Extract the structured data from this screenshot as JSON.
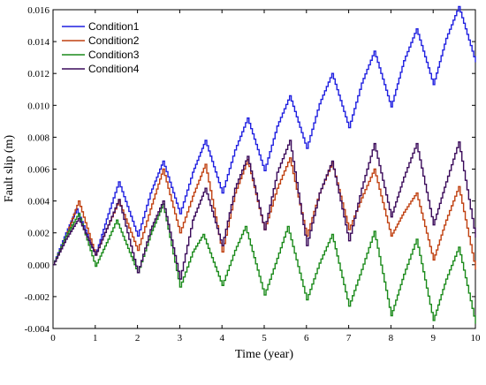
{
  "chart_data": {
    "type": "line",
    "title": "",
    "xlabel": "Time (year)",
    "ylabel": "Fault slip (m)",
    "xlim": [
      0,
      10
    ],
    "ylim": [
      -0.004,
      0.016
    ],
    "xticks": [
      0,
      1,
      2,
      3,
      4,
      5,
      6,
      7,
      8,
      9,
      10
    ],
    "xtick_labels": [
      "0",
      "1",
      "2",
      "3",
      "4",
      "5",
      "6",
      "7",
      "8",
      "9",
      "10"
    ],
    "yticks": [
      -0.004,
      -0.002,
      0,
      0.002,
      0.004,
      0.006,
      0.008,
      0.01,
      0.012,
      0.014,
      0.016
    ],
    "ytick_labels": [
      "-0.004",
      "-0.002",
      "0.000",
      "0.002",
      "0.004",
      "0.006",
      "0.008",
      "0.010",
      "0.012",
      "0.014",
      "0.016"
    ],
    "grid": false,
    "legend_position": "top-left",
    "series": [
      {
        "name": "Condition1",
        "color": "#1f1fe0",
        "x": [
          0,
          0.3,
          0.55,
          1.0,
          1.3,
          1.55,
          2.0,
          2.3,
          2.6,
          3.0,
          3.3,
          3.6,
          4.0,
          4.3,
          4.6,
          5.0,
          5.3,
          5.6,
          6.0,
          6.3,
          6.6,
          7.0,
          7.3,
          7.6,
          8.0,
          8.3,
          8.6,
          9.0,
          9.3,
          9.6,
          10.0
        ],
        "y": [
          0,
          0.002,
          0.0035,
          0.0006,
          0.0032,
          0.0052,
          0.0018,
          0.0045,
          0.0065,
          0.0032,
          0.0058,
          0.0078,
          0.0045,
          0.0072,
          0.0092,
          0.0059,
          0.0087,
          0.0106,
          0.0073,
          0.0101,
          0.012,
          0.0086,
          0.0114,
          0.0134,
          0.0099,
          0.0128,
          0.0148,
          0.0113,
          0.0142,
          0.0162,
          0.0127
        ]
      },
      {
        "name": "Condition2",
        "color": "#c04010",
        "x": [
          0,
          0.3,
          0.6,
          1.0,
          1.3,
          1.55,
          2.0,
          2.3,
          2.6,
          3.0,
          3.3,
          3.6,
          4.0,
          4.3,
          4.6,
          5.0,
          5.3,
          5.6,
          6.0,
          6.3,
          6.6,
          7.0,
          7.3,
          7.6,
          8.0,
          8.3,
          8.6,
          9.0,
          9.3,
          9.6,
          10.0
        ],
        "y": [
          0,
          0.0018,
          0.004,
          0.0006,
          0.0025,
          0.004,
          0.0009,
          0.0035,
          0.006,
          0.002,
          0.0043,
          0.0063,
          0.0008,
          0.0045,
          0.0066,
          0.0022,
          0.0048,
          0.0067,
          0.0018,
          0.0045,
          0.0064,
          0.0022,
          0.0042,
          0.006,
          0.0018,
          0.0033,
          0.0045,
          0.0003,
          0.0028,
          0.0049,
          -0.0003
        ]
      },
      {
        "name": "Condition3",
        "color": "#1a8a1a",
        "x": [
          0,
          0.3,
          0.6,
          1.0,
          1.3,
          1.5,
          2.0,
          2.3,
          2.6,
          3.0,
          3.3,
          3.55,
          4.0,
          4.3,
          4.55,
          5.0,
          5.3,
          5.55,
          6.0,
          6.3,
          6.6,
          7.0,
          7.3,
          7.6,
          8.0,
          8.3,
          8.6,
          9.0,
          9.3,
          9.6,
          10.0
        ],
        "y": [
          0,
          0.0018,
          0.0032,
          -0.0001,
          0.0016,
          0.0028,
          -0.0005,
          0.0019,
          0.0038,
          -0.0014,
          0.0008,
          0.0019,
          -0.0013,
          0.0009,
          0.0024,
          -0.0019,
          0.0004,
          0.0024,
          -0.0022,
          0.0001,
          0.0019,
          -0.0026,
          -0.0003,
          0.0021,
          -0.0032,
          -0.0006,
          0.0016,
          -0.0035,
          -0.0009,
          0.0011,
          -0.0037
        ]
      },
      {
        "name": "Condition4",
        "color": "#3a0a5a",
        "x": [
          0,
          0.3,
          0.6,
          1.0,
          1.3,
          1.55,
          2.0,
          2.3,
          2.6,
          3.0,
          3.3,
          3.6,
          4.0,
          4.3,
          4.6,
          5.0,
          5.3,
          5.6,
          6.0,
          6.3,
          6.6,
          7.0,
          7.3,
          7.6,
          8.0,
          8.3,
          8.6,
          9.0,
          9.3,
          9.6,
          10.0
        ],
        "y": [
          0,
          0.0016,
          0.0029,
          0.0006,
          0.0025,
          0.0041,
          -0.0005,
          0.0022,
          0.004,
          -0.0009,
          0.0028,
          0.0048,
          0.0012,
          0.0048,
          0.0068,
          0.0022,
          0.0058,
          0.0078,
          0.0012,
          0.0045,
          0.0065,
          0.0015,
          0.0048,
          0.0076,
          0.003,
          0.0055,
          0.0076,
          0.0025,
          0.0052,
          0.0077,
          0.0017
        ]
      }
    ]
  }
}
